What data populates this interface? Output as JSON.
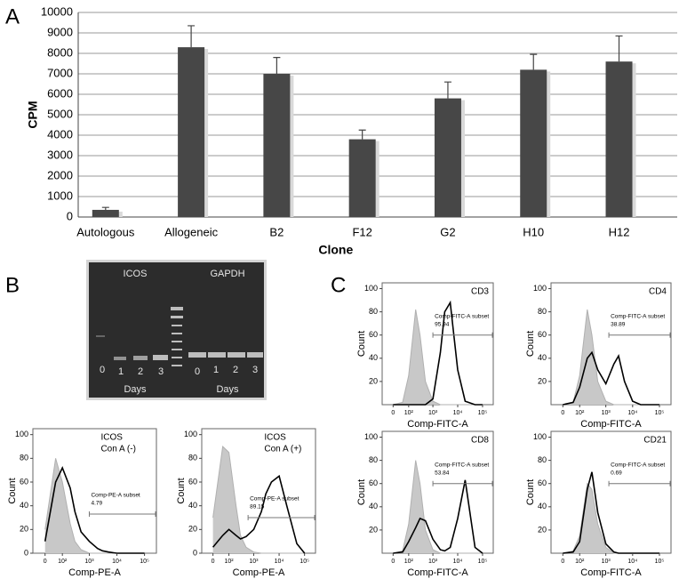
{
  "panels": [
    "A",
    "B",
    "C"
  ],
  "gel": {
    "genes": [
      "ICOS",
      "GAPDH"
    ],
    "lanes_left": [
      "0",
      "1",
      "2",
      "3"
    ],
    "lanes_right": [
      "0",
      "1",
      "2",
      "3"
    ],
    "days": [
      "Days",
      "Days"
    ]
  },
  "chart_data": [
    {
      "type": "bar",
      "categories": [
        "Autologous",
        "Allogeneic",
        "B2",
        "F12",
        "G2",
        "H10",
        "H12"
      ],
      "values": [
        350,
        8300,
        7000,
        3800,
        5800,
        7200,
        7600
      ],
      "errors": [
        120,
        1050,
        800,
        450,
        800,
        750,
        1250
      ],
      "color": "#474747",
      "ylabel": "CPM",
      "xlabel": "Clone",
      "ylim": [
        0,
        10000
      ],
      "yticks": [
        0,
        1000,
        2000,
        3000,
        4000,
        5000,
        6000,
        7000,
        8000,
        9000,
        10000
      ],
      "grid": true
    },
    {
      "type": "area",
      "title": [
        "ICOS",
        "Con A (-)"
      ],
      "xlabel": "Comp-PE-A",
      "ylabel": "Count",
      "x": [
        0,
        50,
        100,
        200,
        300,
        500,
        1000,
        2000,
        3000,
        5000,
        10000,
        20000,
        50000,
        100000
      ],
      "series": [
        {
          "color": "#c8c8c8",
          "filled": true,
          "values": [
            20,
            80,
            60,
            25,
            10,
            3,
            0,
            0,
            0,
            0,
            0,
            0,
            0,
            0
          ]
        },
        {
          "color": "#000000",
          "filled": false,
          "values": [
            10,
            60,
            72,
            55,
            35,
            18,
            10,
            4,
            2,
            1,
            0,
            0,
            0,
            0
          ]
        }
      ],
      "gate": {
        "label": "Comp-PE-A subset",
        "value": 4.79,
        "x": [
          1000,
          270000
        ],
        "y": 33
      },
      "xlim": [
        -60,
        270000
      ],
      "ylim": [
        0,
        105
      ],
      "xscale": "biexponential",
      "xticks": [
        0,
        {
          "value": 100,
          "label": "10²"
        },
        {
          "value": 1000,
          "label": "10³"
        },
        {
          "value": 10000,
          "label": "10⁴"
        },
        {
          "value": 100000,
          "label": "10⁵"
        }
      ],
      "yticks": [
        0,
        20,
        40,
        60,
        80,
        100
      ]
    },
    {
      "type": "area",
      "title": [
        "ICOS",
        "Con A (+)"
      ],
      "xlabel": "Comp-PE-A",
      "ylabel": "Count",
      "x": [
        0,
        50,
        100,
        200,
        300,
        500,
        1000,
        2000,
        3000,
        5000,
        10000,
        20000,
        50000,
        100000
      ],
      "series": [
        {
          "color": "#c8c8c8",
          "filled": true,
          "values": [
            30,
            90,
            85,
            40,
            15,
            5,
            1,
            0,
            0,
            0,
            0,
            0,
            0,
            0
          ]
        },
        {
          "color": "#000000",
          "filled": false,
          "values": [
            5,
            15,
            20,
            15,
            12,
            14,
            20,
            35,
            50,
            60,
            65,
            40,
            8,
            0
          ]
        }
      ],
      "gate": {
        "label": "Comp-PE-A subset",
        "value": 89.15,
        "x": [
          600,
          270000
        ],
        "y": 30
      },
      "xlim": [
        -60,
        270000
      ],
      "ylim": [
        0,
        105
      ],
      "xscale": "biexponential",
      "xticks": [
        0,
        {
          "value": 100,
          "label": "10²"
        },
        {
          "value": 1000,
          "label": "10³"
        },
        {
          "value": 10000,
          "label": "10⁴"
        },
        {
          "value": 100000,
          "label": "10⁵"
        }
      ],
      "yticks": [
        0,
        20,
        40,
        60,
        80,
        100
      ]
    },
    {
      "type": "area",
      "title": [
        "CD3"
      ],
      "xlabel": "Comp-FITC-A",
      "ylabel": "Count",
      "x": [
        0,
        50,
        100,
        200,
        300,
        500,
        1000,
        2000,
        3000,
        5000,
        10000,
        20000,
        50000,
        100000
      ],
      "series": [
        {
          "color": "#c8c8c8",
          "filled": true,
          "values": [
            0,
            2,
            25,
            82,
            60,
            20,
            3,
            0,
            0,
            0,
            0,
            0,
            0,
            0
          ]
        },
        {
          "color": "#000000",
          "filled": false,
          "values": [
            0,
            0,
            0,
            0,
            0,
            0,
            5,
            45,
            80,
            88,
            30,
            3,
            0,
            0
          ]
        }
      ],
      "gate": {
        "label": "Comp-FITC-A subset",
        "value": 95.94,
        "x": [
          1000,
          270000
        ],
        "y": 60
      },
      "xlim": [
        -60,
        270000
      ],
      "ylim": [
        0,
        105
      ],
      "xscale": "biexponential",
      "xticks": [
        0,
        {
          "value": 100,
          "label": "10²"
        },
        {
          "value": 1000,
          "label": "10³"
        },
        {
          "value": 10000,
          "label": "10⁴"
        },
        {
          "value": 100000,
          "label": "10⁵"
        }
      ],
      "yticks": [
        20,
        40,
        60,
        80,
        100
      ]
    },
    {
      "type": "area",
      "title": [
        "CD4"
      ],
      "xlabel": "Comp-FITC-A",
      "ylabel": "Count",
      "x": [
        0,
        50,
        100,
        200,
        300,
        500,
        1000,
        2000,
        3000,
        5000,
        10000,
        20000,
        50000,
        100000
      ],
      "series": [
        {
          "color": "#c8c8c8",
          "filled": true,
          "values": [
            0,
            2,
            25,
            82,
            60,
            20,
            3,
            0,
            0,
            0,
            0,
            0,
            0,
            0
          ]
        },
        {
          "color": "#000000",
          "filled": false,
          "values": [
            0,
            2,
            15,
            40,
            45,
            30,
            18,
            35,
            42,
            20,
            3,
            0,
            0,
            0
          ]
        }
      ],
      "gate": {
        "label": "Comp-FITC-A subset",
        "value": 38.89,
        "x": [
          1300,
          270000
        ],
        "y": 60
      },
      "xlim": [
        -60,
        270000
      ],
      "ylim": [
        0,
        105
      ],
      "xscale": "biexponential",
      "xticks": [
        0,
        {
          "value": 100,
          "label": "10²"
        },
        {
          "value": 1000,
          "label": "10³"
        },
        {
          "value": 10000,
          "label": "10⁴"
        },
        {
          "value": 100000,
          "label": "10⁵"
        }
      ],
      "yticks": [
        20,
        40,
        60,
        80,
        100
      ]
    },
    {
      "type": "area",
      "title": [
        "CD8"
      ],
      "xlabel": "Comp-FITC-A",
      "ylabel": "Count",
      "x": [
        0,
        50,
        100,
        200,
        300,
        500,
        1000,
        2000,
        3000,
        5000,
        10000,
        20000,
        50000,
        100000
      ],
      "series": [
        {
          "color": "#c8c8c8",
          "filled": true,
          "values": [
            0,
            2,
            25,
            80,
            60,
            20,
            3,
            0,
            0,
            0,
            0,
            0,
            0,
            0
          ]
        },
        {
          "color": "#000000",
          "filled": false,
          "values": [
            0,
            1,
            10,
            22,
            30,
            28,
            12,
            3,
            2,
            5,
            30,
            63,
            5,
            0
          ]
        }
      ],
      "gate": {
        "label": "Comp-FITC-A subset",
        "value": 53.84,
        "x": [
          1000,
          270000
        ],
        "y": 60
      },
      "xlim": [
        -60,
        270000
      ],
      "ylim": [
        0,
        105
      ],
      "xscale": "biexponential",
      "xticks": [
        0,
        {
          "value": 100,
          "label": "10²"
        },
        {
          "value": 1000,
          "label": "10³"
        },
        {
          "value": 10000,
          "label": "10⁴"
        },
        {
          "value": 100000,
          "label": "10⁵"
        }
      ],
      "yticks": [
        20,
        40,
        60,
        80,
        100
      ]
    },
    {
      "type": "area",
      "title": [
        "CD21"
      ],
      "xlabel": "Comp-FITC-A",
      "ylabel": "Count",
      "x": [
        0,
        50,
        100,
        200,
        300,
        500,
        1000,
        2000,
        3000,
        5000,
        10000,
        20000,
        50000,
        100000
      ],
      "series": [
        {
          "color": "#c8c8c8",
          "filled": true,
          "values": [
            0,
            2,
            15,
            60,
            55,
            25,
            5,
            0,
            0,
            0,
            0,
            0,
            0,
            0
          ]
        },
        {
          "color": "#000000",
          "filled": false,
          "values": [
            0,
            1,
            10,
            55,
            70,
            35,
            8,
            1,
            0,
            0,
            0,
            0,
            0,
            0
          ]
        }
      ],
      "gate": {
        "label": "Comp-FITC-A subset",
        "value": 0.69,
        "x": [
          1300,
          270000
        ],
        "y": 60
      },
      "xlim": [
        -60,
        270000
      ],
      "ylim": [
        0,
        105
      ],
      "xscale": "biexponential",
      "xticks": [
        0,
        {
          "value": 100,
          "label": "10²"
        },
        {
          "value": 1000,
          "label": "10³"
        },
        {
          "value": 10000,
          "label": "10⁴"
        },
        {
          "value": 100000,
          "label": "10⁵"
        }
      ],
      "yticks": [
        20,
        40,
        60,
        80,
        100
      ]
    }
  ]
}
